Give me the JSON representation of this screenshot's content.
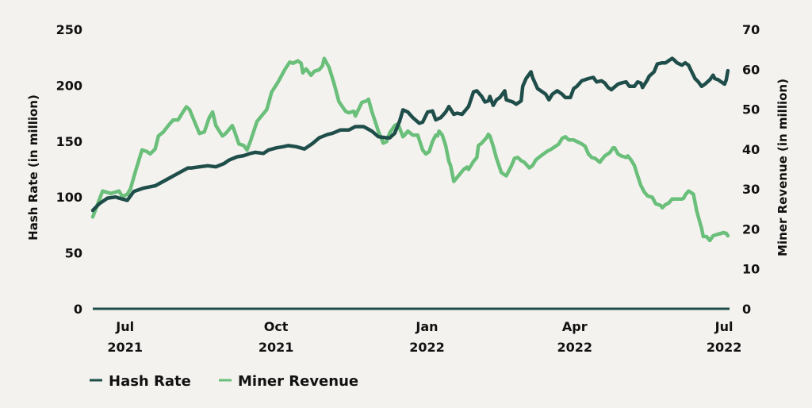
{
  "chart_data": {
    "type": "line",
    "title": "",
    "xlabel": "",
    "ylabel_left": "Hash Rate (in million)",
    "ylabel_right": "Miner Revenue (in million)",
    "ylim_left": [
      0,
      250
    ],
    "ylim_right": [
      0,
      70
    ],
    "yticks_left": [
      "0",
      "50",
      "100",
      "150",
      "200",
      "250"
    ],
    "yticks_right": [
      "0",
      "10",
      "20",
      "30",
      "40",
      "50",
      "60",
      "70"
    ],
    "x_unit": "days since 2021-07-01",
    "xlim": [
      -10,
      378
    ],
    "xticks": [
      {
        "day": 0,
        "line1": "Jul",
        "line2": "2021"
      },
      {
        "day": 92,
        "line1": "Oct",
        "line2": "2021"
      },
      {
        "day": 184,
        "line1": "Jan",
        "line2": "2022"
      },
      {
        "day": 274,
        "line1": "Apr",
        "line2": "2022"
      },
      {
        "day": 365,
        "line1": "Jul",
        "line2": "2022"
      }
    ],
    "grid": false,
    "legend_position": "bottom-left",
    "series": [
      {
        "name": "Hash Rate",
        "axis": "left",
        "color": "#1f4e4a",
        "points": [
          [
            -10,
            88
          ],
          [
            -6,
            94
          ],
          [
            -1,
            99
          ],
          [
            4,
            100
          ],
          [
            6,
            99
          ],
          [
            11,
            97
          ],
          [
            15,
            105
          ],
          [
            21,
            108
          ],
          [
            28,
            110
          ],
          [
            33,
            114
          ],
          [
            38,
            118
          ],
          [
            43,
            122
          ],
          [
            48,
            126
          ],
          [
            50,
            126
          ],
          [
            55,
            127
          ],
          [
            60,
            128
          ],
          [
            65,
            127
          ],
          [
            70,
            130
          ],
          [
            73,
            133
          ],
          [
            78,
            136
          ],
          [
            82,
            137
          ],
          [
            86,
            139
          ],
          [
            89,
            140
          ],
          [
            94,
            139
          ],
          [
            97,
            142
          ],
          [
            102,
            144
          ],
          [
            106,
            145
          ],
          [
            109,
            146
          ],
          [
            114,
            145
          ],
          [
            119,
            143
          ],
          [
            124,
            148
          ],
          [
            128,
            153
          ],
          [
            133,
            156
          ],
          [
            136,
            157
          ],
          [
            141,
            160
          ],
          [
            146,
            160
          ],
          [
            150,
            163
          ],
          [
            155,
            163
          ],
          [
            160,
            159
          ],
          [
            164,
            154
          ],
          [
            169,
            153
          ],
          [
            171,
            153
          ],
          [
            174,
            157
          ],
          [
            177,
            168
          ],
          [
            179,
            178
          ],
          [
            182,
            176
          ],
          [
            185,
            171
          ],
          [
            189,
            166
          ],
          [
            191,
            167
          ],
          [
            194,
            176
          ],
          [
            197,
            177
          ],
          [
            199,
            169
          ],
          [
            202,
            171
          ],
          [
            205,
            176
          ],
          [
            207,
            181
          ],
          [
            210,
            174
          ],
          [
            212,
            175
          ],
          [
            215,
            174
          ],
          [
            219,
            181
          ],
          [
            222,
            194
          ],
          [
            224,
            195
          ],
          [
            227,
            190
          ],
          [
            229,
            185
          ],
          [
            231,
            186
          ],
          [
            232,
            190
          ],
          [
            234,
            182
          ],
          [
            236,
            187
          ],
          [
            238,
            189
          ],
          [
            241,
            195
          ],
          [
            242,
            187
          ],
          [
            246,
            185
          ],
          [
            248,
            183
          ],
          [
            251,
            186
          ],
          [
            252,
            199
          ],
          [
            254,
            206
          ],
          [
            257,
            212
          ],
          [
            258,
            207
          ],
          [
            261,
            197
          ],
          [
            263,
            195
          ],
          [
            266,
            192
          ],
          [
            268,
            187
          ],
          [
            270,
            192
          ],
          [
            273,
            195
          ],
          [
            276,
            192
          ],
          [
            278,
            189
          ],
          [
            281,
            189
          ],
          [
            283,
            197
          ],
          [
            285,
            199
          ],
          [
            288,
            204
          ],
          [
            292,
            206
          ],
          [
            295,
            207
          ],
          [
            297,
            203
          ],
          [
            300,
            204
          ],
          [
            302,
            202
          ],
          [
            304,
            198
          ],
          [
            306,
            196
          ],
          [
            310,
            201
          ],
          [
            312,
            202
          ],
          [
            315,
            203
          ],
          [
            317,
            199
          ],
          [
            320,
            199
          ],
          [
            322,
            203
          ],
          [
            324,
            202
          ],
          [
            325,
            198
          ],
          [
            328,
            205
          ],
          [
            329,
            208
          ],
          [
            332,
            212
          ],
          [
            334,
            219
          ],
          [
            337,
            220
          ],
          [
            339,
            220
          ],
          [
            341,
            222
          ],
          [
            343,
            224
          ],
          [
            344,
            223
          ],
          [
            346,
            220
          ],
          [
            349,
            218
          ],
          [
            351,
            220
          ],
          [
            353,
            218
          ],
          [
            354,
            215
          ],
          [
            357,
            206
          ],
          [
            359,
            203
          ],
          [
            361,
            199
          ],
          [
            363,
            201
          ],
          [
            366,
            205
          ],
          [
            368,
            209
          ],
          [
            369,
            206
          ],
          [
            371,
            205
          ],
          [
            373,
            203
          ],
          [
            375,
            201
          ],
          [
            376,
            205
          ],
          [
            377,
            213
          ]
        ]
      },
      {
        "name": "Miner Revenue",
        "axis": "right",
        "color": "#6abf7a",
        "points": [
          [
            -10,
            23.0
          ],
          [
            -4,
            29.5
          ],
          [
            1,
            28.9
          ],
          [
            6,
            29.5
          ],
          [
            8,
            28.1
          ],
          [
            11,
            28.7
          ],
          [
            13,
            30.1
          ],
          [
            16,
            34.4
          ],
          [
            20,
            39.8
          ],
          [
            23,
            39.4
          ],
          [
            25,
            38.8
          ],
          [
            28,
            40.0
          ],
          [
            30,
            43.3
          ],
          [
            33,
            44.3
          ],
          [
            36,
            45.9
          ],
          [
            39,
            47.3
          ],
          [
            42,
            47.3
          ],
          [
            45,
            49.3
          ],
          [
            47,
            50.6
          ],
          [
            49,
            49.9
          ],
          [
            52,
            46.9
          ],
          [
            55,
            43.9
          ],
          [
            58,
            44.3
          ],
          [
            61,
            47.9
          ],
          [
            63,
            49.3
          ],
          [
            65,
            45.9
          ],
          [
            69,
            43.3
          ],
          [
            71,
            43.9
          ],
          [
            75,
            45.9
          ],
          [
            76,
            44.9
          ],
          [
            79,
            41.3
          ],
          [
            82,
            40.9
          ],
          [
            84,
            39.8
          ],
          [
            86,
            41.9
          ],
          [
            90,
            46.9
          ],
          [
            92,
            47.9
          ],
          [
            96,
            49.9
          ],
          [
            99,
            54.3
          ],
          [
            103,
            56.9
          ],
          [
            107,
            59.9
          ],
          [
            110,
            61.8
          ],
          [
            112,
            61.5
          ],
          [
            115,
            62.1
          ],
          [
            117,
            61.5
          ],
          [
            118,
            59.1
          ],
          [
            120,
            60.1
          ],
          [
            123,
            58.5
          ],
          [
            125,
            59.5
          ],
          [
            128,
            59.9
          ],
          [
            130,
            60.9
          ],
          [
            131,
            62.7
          ],
          [
            134,
            60.5
          ],
          [
            137,
            56.5
          ],
          [
            140,
            51.9
          ],
          [
            144,
            49.5
          ],
          [
            146,
            49.1
          ],
          [
            149,
            49.5
          ],
          [
            150,
            48.3
          ],
          [
            154,
            51.7
          ],
          [
            157,
            52.1
          ],
          [
            158,
            52.5
          ],
          [
            160,
            49.5
          ],
          [
            164,
            44.5
          ],
          [
            167,
            41.5
          ],
          [
            169,
            41.9
          ],
          [
            171,
            44.1
          ],
          [
            174,
            45.9
          ],
          [
            176,
            46.3
          ],
          [
            179,
            43.1
          ],
          [
            180,
            43.5
          ],
          [
            182,
            44.5
          ],
          [
            185,
            43.5
          ],
          [
            188,
            43.5
          ],
          [
            191,
            39.8
          ],
          [
            193,
            38.8
          ],
          [
            195,
            39.4
          ],
          [
            197,
            41.9
          ],
          [
            199,
            43.5
          ],
          [
            200,
            43.3
          ],
          [
            201,
            44.5
          ],
          [
            203,
            43.5
          ],
          [
            205,
            40.9
          ],
          [
            207,
            36.9
          ],
          [
            208,
            35.9
          ],
          [
            210,
            31.9
          ],
          [
            212,
            32.9
          ],
          [
            214,
            33.9
          ],
          [
            216,
            34.9
          ],
          [
            218,
            35.5
          ],
          [
            219,
            34.9
          ],
          [
            222,
            36.9
          ],
          [
            224,
            37.9
          ],
          [
            225,
            40.9
          ],
          [
            227,
            41.5
          ],
          [
            230,
            42.9
          ],
          [
            231,
            43.7
          ],
          [
            232,
            43.3
          ],
          [
            234,
            40.7
          ],
          [
            236,
            37.7
          ],
          [
            239,
            34.1
          ],
          [
            242,
            33.3
          ],
          [
            245,
            35.7
          ],
          [
            247,
            37.7
          ],
          [
            249,
            37.9
          ],
          [
            251,
            37.1
          ],
          [
            253,
            36.7
          ],
          [
            256,
            35.3
          ],
          [
            258,
            35.9
          ],
          [
            260,
            37.3
          ],
          [
            263,
            38.3
          ],
          [
            267,
            39.5
          ],
          [
            269,
            39.9
          ],
          [
            272,
            40.7
          ],
          [
            274,
            41.3
          ],
          [
            276,
            42.7
          ],
          [
            278,
            43.1
          ],
          [
            280,
            42.3
          ],
          [
            283,
            42.3
          ],
          [
            285,
            41.9
          ],
          [
            288,
            41.3
          ],
          [
            290,
            40.7
          ],
          [
            292,
            38.8
          ],
          [
            294,
            37.9
          ],
          [
            296,
            37.7
          ],
          [
            299,
            36.7
          ],
          [
            300,
            37.3
          ],
          [
            302,
            38.3
          ],
          [
            305,
            39.1
          ],
          [
            307,
            40.3
          ],
          [
            308,
            40.3
          ],
          [
            310,
            38.8
          ],
          [
            312,
            38.3
          ],
          [
            315,
            37.9
          ],
          [
            316,
            38.3
          ],
          [
            318,
            37.3
          ],
          [
            320,
            35.9
          ],
          [
            322,
            33.3
          ],
          [
            324,
            30.9
          ],
          [
            326,
            29.3
          ],
          [
            328,
            28.3
          ],
          [
            331,
            27.9
          ],
          [
            333,
            26.3
          ],
          [
            336,
            25.9
          ],
          [
            337,
            25.3
          ],
          [
            339,
            26.1
          ],
          [
            341,
            26.5
          ],
          [
            343,
            27.5
          ],
          [
            346,
            27.5
          ],
          [
            349,
            27.5
          ],
          [
            350,
            27.7
          ],
          [
            351,
            28.5
          ],
          [
            353,
            29.5
          ],
          [
            354,
            29.3
          ],
          [
            356,
            28.7
          ],
          [
            358,
            24.5
          ],
          [
            361,
            20.1
          ],
          [
            362,
            18.1
          ],
          [
            364,
            18.1
          ],
          [
            366,
            17.1
          ],
          [
            368,
            18.3
          ],
          [
            371,
            18.7
          ],
          [
            373,
            18.9
          ],
          [
            374,
            19.1
          ],
          [
            376,
            18.9
          ],
          [
            377,
            18.3
          ]
        ]
      }
    ]
  }
}
